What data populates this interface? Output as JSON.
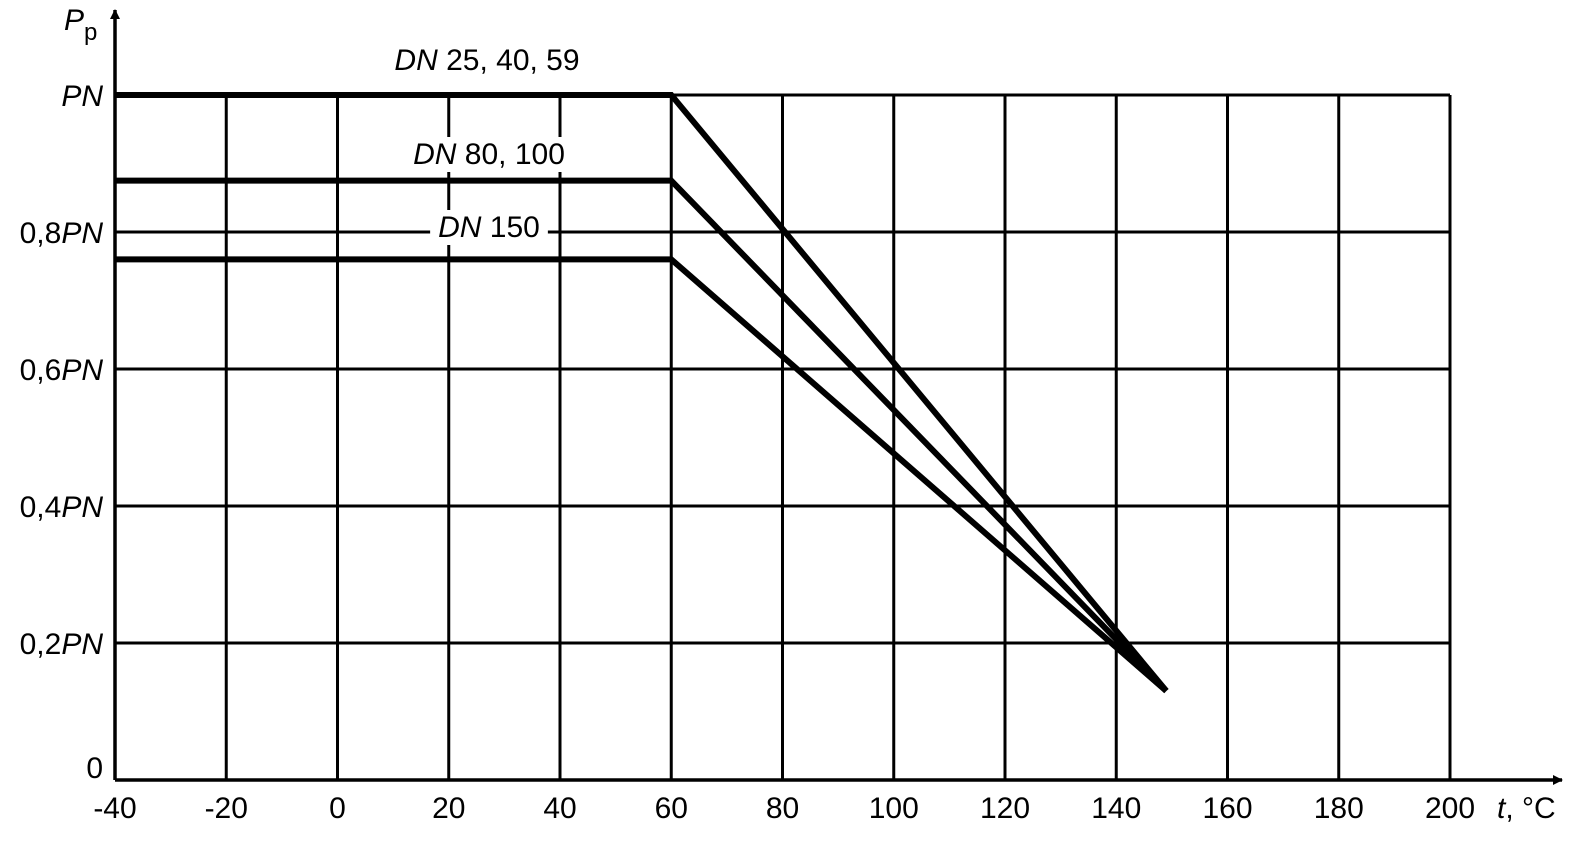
{
  "chart_data": {
    "type": "line",
    "xlabel": {
      "var": "t",
      "unit": ", °C"
    },
    "ylabel": {
      "main": "P",
      "sub": "p"
    },
    "xlim": [
      -40,
      200
    ],
    "ylim": [
      0,
      1
    ],
    "x_ticks": [
      -40,
      -20,
      0,
      20,
      40,
      60,
      80,
      100,
      120,
      140,
      160,
      180,
      200
    ],
    "x_tick_labels": [
      "-40",
      "-20",
      "0",
      "20",
      "40",
      "60",
      "80",
      "100",
      "120",
      "140",
      "160",
      "180",
      "200"
    ],
    "y_ticks": [
      {
        "value": 0,
        "num": "0",
        "sym": ""
      },
      {
        "value": 0.2,
        "num": "0,2",
        "sym": "PN"
      },
      {
        "value": 0.4,
        "num": "0,4",
        "sym": "PN"
      },
      {
        "value": 0.6,
        "num": "0,6",
        "sym": "PN"
      },
      {
        "value": 0.8,
        "num": "0,8",
        "sym": "PN"
      },
      {
        "value": 1.0,
        "num": "",
        "sym": "PN"
      }
    ],
    "grid": true,
    "series": [
      {
        "name": "DN 25, 40, 59",
        "name_prefix": "DN",
        "name_rest": " 25, 40, 59",
        "points": [
          [
            -40,
            1.0
          ],
          [
            60,
            1.0
          ],
          [
            149,
            0.13
          ]
        ]
      },
      {
        "name": "DN 80, 100",
        "name_prefix": "DN",
        "name_rest": " 80, 100",
        "points": [
          [
            -40,
            0.875
          ],
          [
            60,
            0.875
          ],
          [
            149,
            0.13
          ]
        ]
      },
      {
        "name": "DN 150",
        "name_prefix": "DN",
        "name_rest": " 150",
        "points": [
          [
            -40,
            0.76
          ],
          [
            60,
            0.76
          ],
          [
            149,
            0.13
          ]
        ]
      }
    ]
  }
}
